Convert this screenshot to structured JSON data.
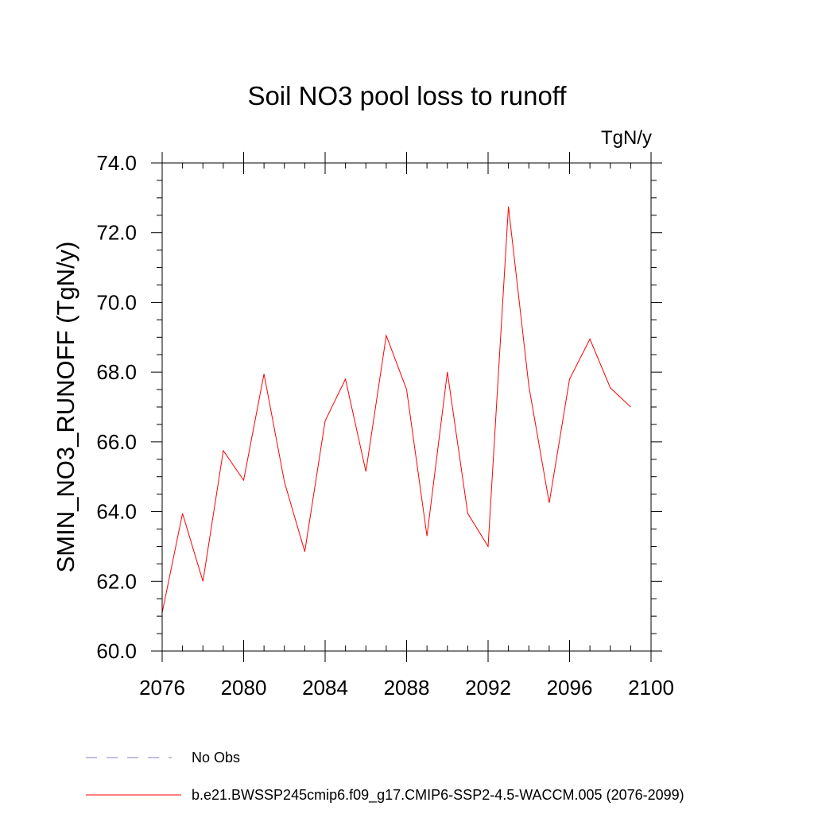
{
  "chart_data": {
    "type": "line",
    "title": "Soil NO3 pool loss to runoff",
    "units_label": "TgN/y",
    "xlabel": "",
    "ylabel": "SMIN_NO3_RUNOFF  (TgN/y)",
    "xlim": [
      2076,
      2100
    ],
    "ylim": [
      60.0,
      74.0
    ],
    "x_ticks": [
      2076,
      2080,
      2084,
      2088,
      2092,
      2096,
      2100
    ],
    "x_tick_labels": [
      "2076",
      "2080",
      "2084",
      "2088",
      "2092",
      "2096",
      "2100"
    ],
    "y_ticks": [
      60,
      62,
      64,
      66,
      68,
      70,
      72,
      74
    ],
    "y_tick_labels": [
      "60.0",
      "62.0",
      "64.0",
      "66.0",
      "68.0",
      "70.0",
      "72.0",
      "74.0"
    ],
    "x_minor_step": 1,
    "y_minor_step": 0.5,
    "grid": false,
    "legend_position": "bottom",
    "series": [
      {
        "name": "b.e21.BWSSP245cmip6.f09_g17.CMIP6-SSP2-4.5-WACCM.005 (2076-2099)",
        "color": "#ff0000",
        "style": "solid",
        "x": [
          2076,
          2077,
          2078,
          2079,
          2080,
          2081,
          2082,
          2083,
          2084,
          2085,
          2086,
          2087,
          2088,
          2089,
          2090,
          2091,
          2092,
          2093,
          2094,
          2095,
          2096,
          2097,
          2098,
          2099
        ],
        "values": [
          61.1,
          63.95,
          62.0,
          65.75,
          64.9,
          67.95,
          64.85,
          62.85,
          66.6,
          67.8,
          65.15,
          69.05,
          67.5,
          63.3,
          68.0,
          63.95,
          63.0,
          72.75,
          67.6,
          64.25,
          67.8,
          68.95,
          67.55,
          67.0
        ]
      }
    ],
    "legend": [
      {
        "label": "No Obs",
        "color": "#8080c8",
        "style": "dashed"
      },
      {
        "label": "b.e21.BWSSP245cmip6.f09_g17.CMIP6-SSP2-4.5-WACCM.005 (2076-2099)",
        "color": "#ff0000",
        "style": "solid"
      }
    ]
  }
}
